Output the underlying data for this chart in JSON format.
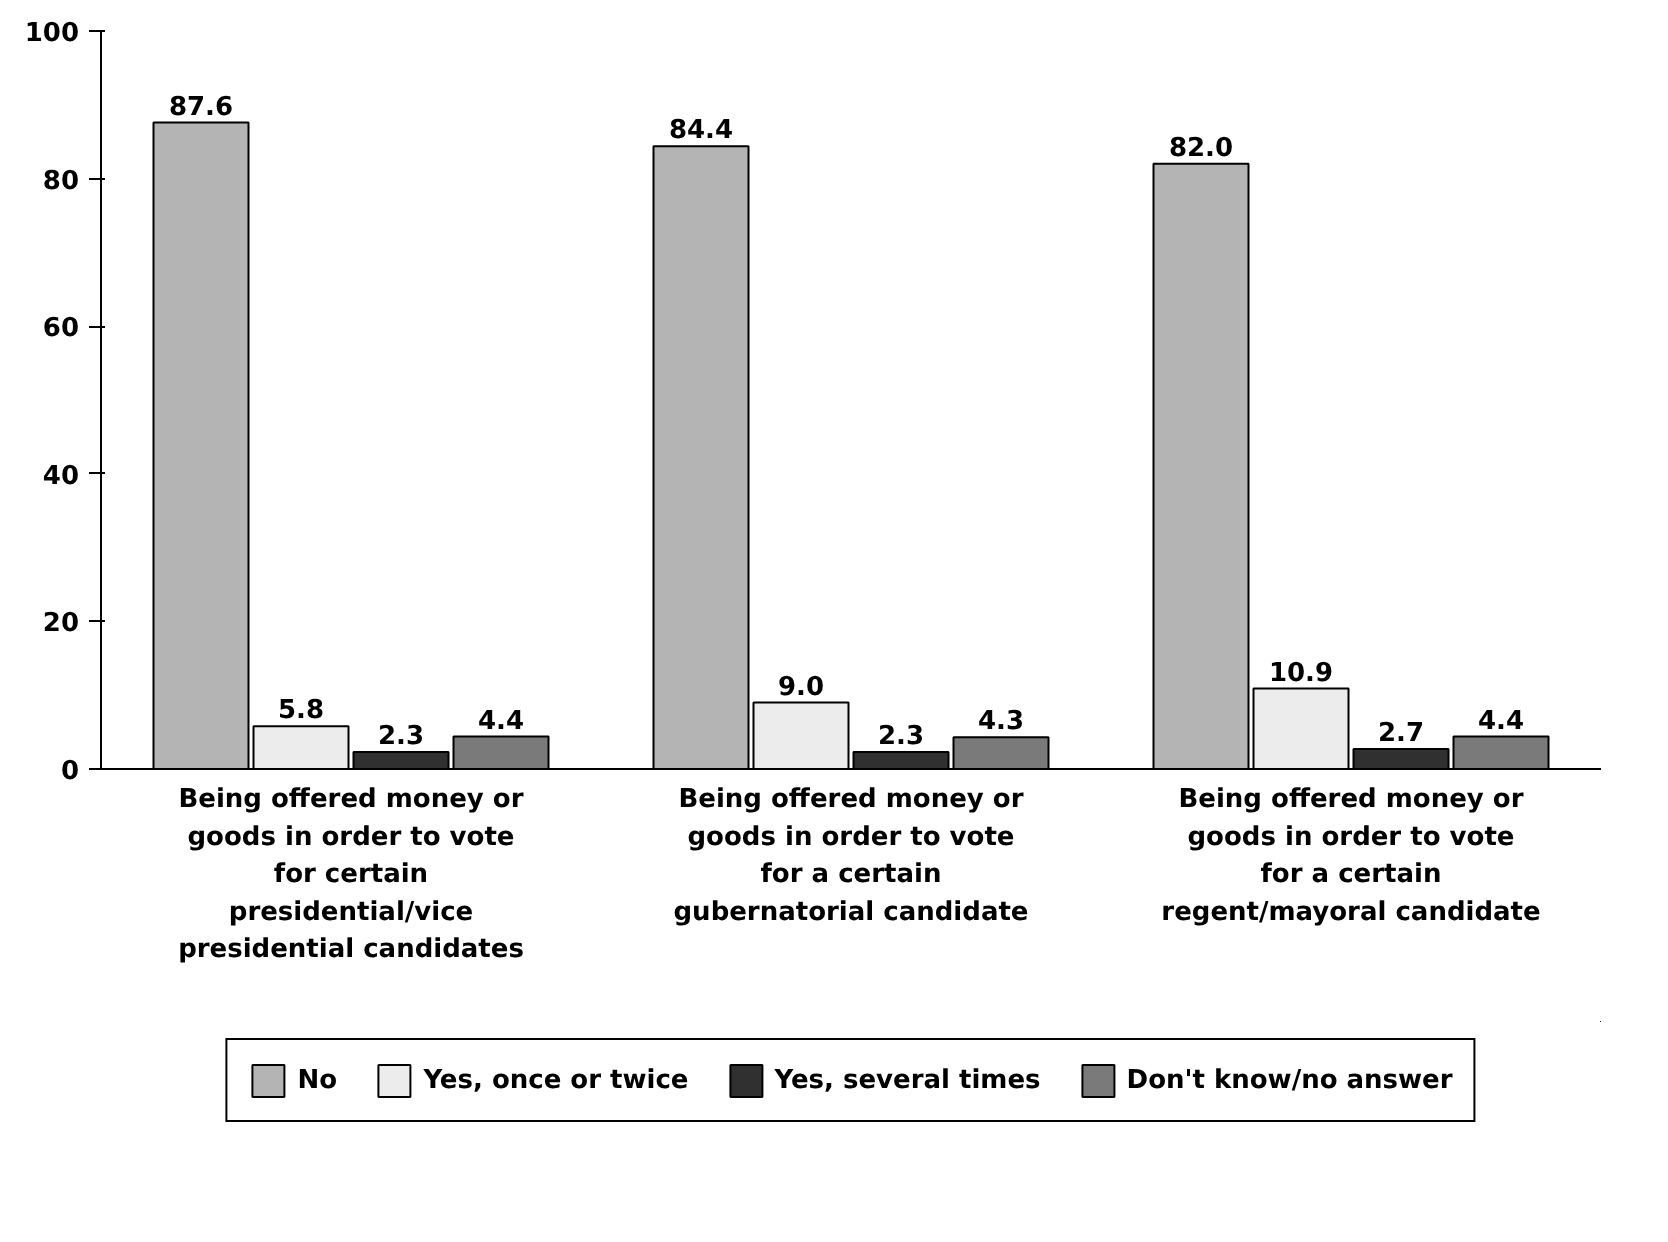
{
  "chart_data": {
    "type": "bar",
    "categories": [
      "Being offered money or goods in order to vote for certain presidential/vice presidential candidates",
      "Being offered money or goods in order to vote for a certain gubernatorial candidate",
      "Being offered money or goods in order to vote for a certain regent/mayoral candidate"
    ],
    "series": [
      {
        "name": "No",
        "color": "#b4b4b4",
        "values": [
          87.6,
          84.4,
          82.0
        ],
        "value_labels": [
          "87.6",
          "84.4",
          "82.0"
        ]
      },
      {
        "name": "Yes, once or twice",
        "color": "#ececec",
        "values": [
          5.8,
          9.0,
          10.9
        ],
        "value_labels": [
          "5.8",
          "9.0",
          "10.9"
        ]
      },
      {
        "name": "Yes, several times",
        "color": "#303030",
        "values": [
          2.3,
          2.3,
          2.7
        ],
        "value_labels": [
          "2.3",
          "2.3",
          "2.7"
        ]
      },
      {
        "name": "Don't know/no answer",
        "color": "#7a7a7a",
        "values": [
          4.4,
          4.3,
          4.4
        ],
        "value_labels": [
          "4.4",
          "4.3",
          "4.4"
        ]
      }
    ],
    "ylim": [
      0,
      100
    ],
    "yticks": [
      0,
      20,
      40,
      60,
      80,
      100
    ],
    "grid": false,
    "legend": "bottom"
  }
}
